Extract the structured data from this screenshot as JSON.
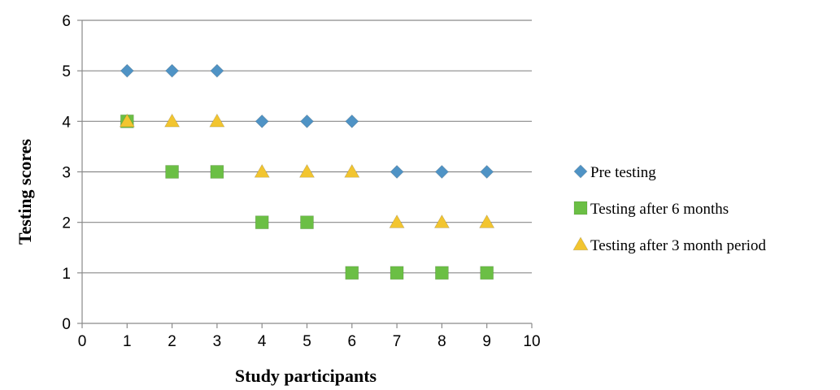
{
  "chart_data": {
    "type": "scatter",
    "xlabel": "Study participants",
    "ylabel": "Testing scores",
    "xlim": [
      0,
      10
    ],
    "ylim": [
      0,
      6
    ],
    "xticks": [
      0,
      1,
      2,
      3,
      4,
      5,
      6,
      7,
      8,
      9,
      10
    ],
    "yticks": [
      0,
      1,
      2,
      3,
      4,
      5,
      6
    ],
    "grid": "horizontal",
    "legend_position": "right",
    "series": [
      {
        "name": "Pre testing",
        "marker": "diamond",
        "color": "#4F93C5",
        "x": [
          1,
          2,
          3,
          4,
          5,
          6,
          7,
          8,
          9
        ],
        "y": [
          5,
          5,
          5,
          4,
          4,
          4,
          3,
          3,
          3
        ]
      },
      {
        "name": "Testing after 6 months",
        "marker": "square",
        "color": "#6BBF45",
        "x": [
          1,
          2,
          3,
          4,
          5,
          6,
          7,
          8,
          9
        ],
        "y": [
          4,
          3,
          3,
          2,
          2,
          1,
          1,
          1,
          1
        ]
      },
      {
        "name": "Testing after 3 month period",
        "marker": "triangle",
        "color": "#F2C530",
        "x": [
          1,
          2,
          3,
          4,
          5,
          6,
          7,
          8,
          9
        ],
        "y": [
          4,
          4,
          4,
          3,
          3,
          3,
          2,
          2,
          2
        ]
      }
    ]
  }
}
